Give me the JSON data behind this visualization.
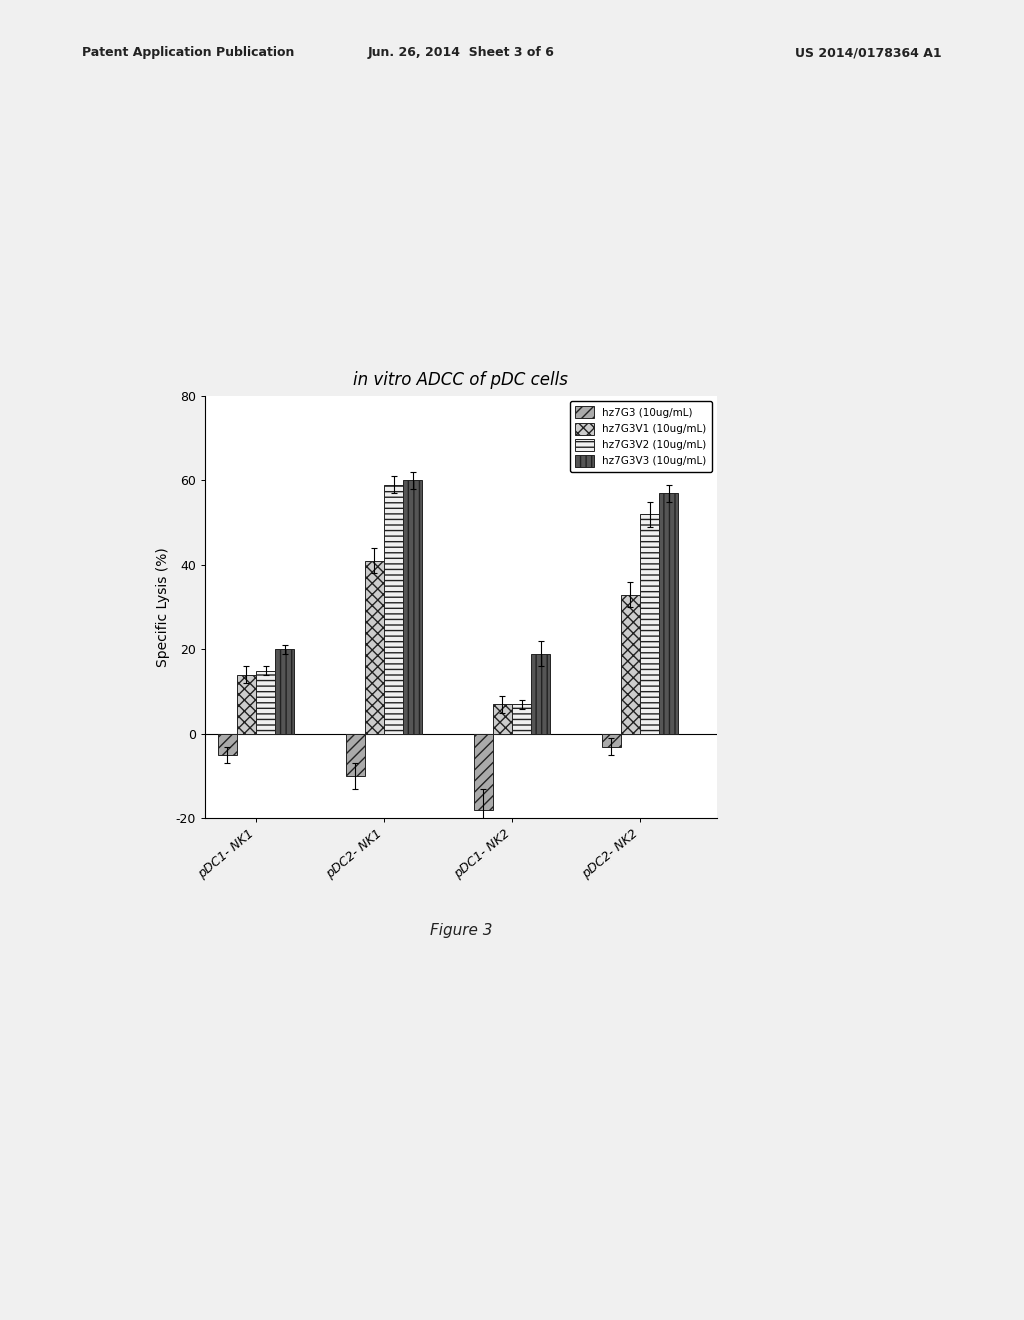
{
  "title": "in vitro ADCC of pDC cells",
  "ylabel": "Specific Lysis (%)",
  "categories": [
    "pDC1- NK1",
    "pDC2- NK1",
    "pDC1- NK2",
    "pDC2- NK2"
  ],
  "legend_labels": [
    "hz7G3 (10ug/mL)",
    "hz7G3V1 (10ug/mL)",
    "hz7G3V2 (10ug/mL)",
    "hz7G3V3 (10ug/mL)"
  ],
  "values": [
    [
      -5,
      14,
      15,
      20
    ],
    [
      -10,
      41,
      59,
      60
    ],
    [
      -18,
      7,
      7,
      19
    ],
    [
      -3,
      33,
      52,
      57
    ]
  ],
  "errors": [
    [
      2,
      2,
      1,
      1
    ],
    [
      3,
      3,
      2,
      2
    ],
    [
      5,
      2,
      1,
      3
    ],
    [
      2,
      3,
      3,
      2
    ]
  ],
  "ylim": [
    -20,
    80
  ],
  "yticks": [
    -20,
    0,
    20,
    40,
    60,
    80
  ],
  "figure_caption": "Figure 3",
  "header_left": "Patent Application Publication",
  "header_mid": "Jun. 26, 2014  Sheet 3 of 6",
  "header_right": "US 2014/0178364 A1",
  "background_color": "#f0f0f0",
  "title_fontsize": 12,
  "label_fontsize": 10,
  "tick_fontsize": 9,
  "header_fontsize": 9
}
